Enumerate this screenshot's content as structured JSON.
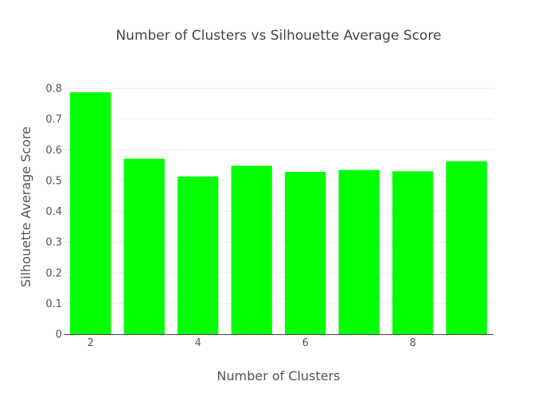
{
  "chart_data": {
    "type": "bar",
    "title": "Number of Clusters vs Silhouette Average Score",
    "xlabel": "Number of Clusters",
    "ylabel": "Silhouette Average Score",
    "x": [
      2,
      3,
      4,
      5,
      6,
      7,
      8,
      9
    ],
    "values": [
      0.787,
      0.571,
      0.513,
      0.548,
      0.528,
      0.534,
      0.53,
      0.563
    ],
    "xlim": [
      1.5,
      9.5
    ],
    "ylim": [
      0,
      0.8
    ],
    "x_ticks": [
      "2",
      "4",
      "6",
      "8"
    ],
    "y_ticks": [
      "0",
      "0.1",
      "0.2",
      "0.3",
      "0.4",
      "0.5",
      "0.6",
      "0.7",
      "0.8"
    ],
    "bar_color": "#00ff00",
    "grid": true,
    "legend": false
  }
}
